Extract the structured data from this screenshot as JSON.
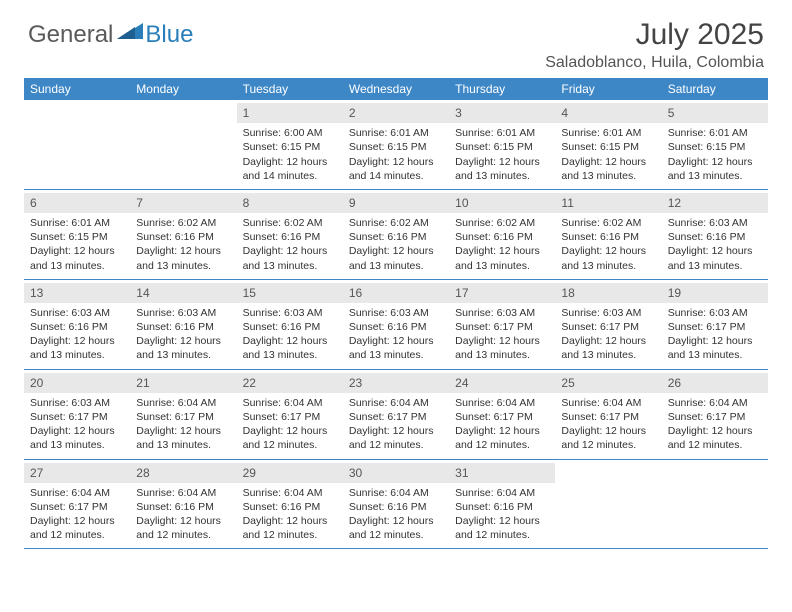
{
  "logo": {
    "part1": "General",
    "part2": "Blue"
  },
  "title": "July 2025",
  "location": "Saladoblanco, Huila, Colombia",
  "colors": {
    "header_bg": "#3d87c7",
    "daynum_bg": "#e8e8e8",
    "logo_blue": "#2a7fba"
  },
  "dayNames": [
    "Sunday",
    "Monday",
    "Tuesday",
    "Wednesday",
    "Thursday",
    "Friday",
    "Saturday"
  ],
  "weeks": [
    [
      null,
      null,
      {
        "n": "1",
        "sr": "Sunrise: 6:00 AM",
        "ss": "Sunset: 6:15 PM",
        "dl": "Daylight: 12 hours and 14 minutes."
      },
      {
        "n": "2",
        "sr": "Sunrise: 6:01 AM",
        "ss": "Sunset: 6:15 PM",
        "dl": "Daylight: 12 hours and 14 minutes."
      },
      {
        "n": "3",
        "sr": "Sunrise: 6:01 AM",
        "ss": "Sunset: 6:15 PM",
        "dl": "Daylight: 12 hours and 13 minutes."
      },
      {
        "n": "4",
        "sr": "Sunrise: 6:01 AM",
        "ss": "Sunset: 6:15 PM",
        "dl": "Daylight: 12 hours and 13 minutes."
      },
      {
        "n": "5",
        "sr": "Sunrise: 6:01 AM",
        "ss": "Sunset: 6:15 PM",
        "dl": "Daylight: 12 hours and 13 minutes."
      }
    ],
    [
      {
        "n": "6",
        "sr": "Sunrise: 6:01 AM",
        "ss": "Sunset: 6:15 PM",
        "dl": "Daylight: 12 hours and 13 minutes."
      },
      {
        "n": "7",
        "sr": "Sunrise: 6:02 AM",
        "ss": "Sunset: 6:16 PM",
        "dl": "Daylight: 12 hours and 13 minutes."
      },
      {
        "n": "8",
        "sr": "Sunrise: 6:02 AM",
        "ss": "Sunset: 6:16 PM",
        "dl": "Daylight: 12 hours and 13 minutes."
      },
      {
        "n": "9",
        "sr": "Sunrise: 6:02 AM",
        "ss": "Sunset: 6:16 PM",
        "dl": "Daylight: 12 hours and 13 minutes."
      },
      {
        "n": "10",
        "sr": "Sunrise: 6:02 AM",
        "ss": "Sunset: 6:16 PM",
        "dl": "Daylight: 12 hours and 13 minutes."
      },
      {
        "n": "11",
        "sr": "Sunrise: 6:02 AM",
        "ss": "Sunset: 6:16 PM",
        "dl": "Daylight: 12 hours and 13 minutes."
      },
      {
        "n": "12",
        "sr": "Sunrise: 6:03 AM",
        "ss": "Sunset: 6:16 PM",
        "dl": "Daylight: 12 hours and 13 minutes."
      }
    ],
    [
      {
        "n": "13",
        "sr": "Sunrise: 6:03 AM",
        "ss": "Sunset: 6:16 PM",
        "dl": "Daylight: 12 hours and 13 minutes."
      },
      {
        "n": "14",
        "sr": "Sunrise: 6:03 AM",
        "ss": "Sunset: 6:16 PM",
        "dl": "Daylight: 12 hours and 13 minutes."
      },
      {
        "n": "15",
        "sr": "Sunrise: 6:03 AM",
        "ss": "Sunset: 6:16 PM",
        "dl": "Daylight: 12 hours and 13 minutes."
      },
      {
        "n": "16",
        "sr": "Sunrise: 6:03 AM",
        "ss": "Sunset: 6:16 PM",
        "dl": "Daylight: 12 hours and 13 minutes."
      },
      {
        "n": "17",
        "sr": "Sunrise: 6:03 AM",
        "ss": "Sunset: 6:17 PM",
        "dl": "Daylight: 12 hours and 13 minutes."
      },
      {
        "n": "18",
        "sr": "Sunrise: 6:03 AM",
        "ss": "Sunset: 6:17 PM",
        "dl": "Daylight: 12 hours and 13 minutes."
      },
      {
        "n": "19",
        "sr": "Sunrise: 6:03 AM",
        "ss": "Sunset: 6:17 PM",
        "dl": "Daylight: 12 hours and 13 minutes."
      }
    ],
    [
      {
        "n": "20",
        "sr": "Sunrise: 6:03 AM",
        "ss": "Sunset: 6:17 PM",
        "dl": "Daylight: 12 hours and 13 minutes."
      },
      {
        "n": "21",
        "sr": "Sunrise: 6:04 AM",
        "ss": "Sunset: 6:17 PM",
        "dl": "Daylight: 12 hours and 13 minutes."
      },
      {
        "n": "22",
        "sr": "Sunrise: 6:04 AM",
        "ss": "Sunset: 6:17 PM",
        "dl": "Daylight: 12 hours and 12 minutes."
      },
      {
        "n": "23",
        "sr": "Sunrise: 6:04 AM",
        "ss": "Sunset: 6:17 PM",
        "dl": "Daylight: 12 hours and 12 minutes."
      },
      {
        "n": "24",
        "sr": "Sunrise: 6:04 AM",
        "ss": "Sunset: 6:17 PM",
        "dl": "Daylight: 12 hours and 12 minutes."
      },
      {
        "n": "25",
        "sr": "Sunrise: 6:04 AM",
        "ss": "Sunset: 6:17 PM",
        "dl": "Daylight: 12 hours and 12 minutes."
      },
      {
        "n": "26",
        "sr": "Sunrise: 6:04 AM",
        "ss": "Sunset: 6:17 PM",
        "dl": "Daylight: 12 hours and 12 minutes."
      }
    ],
    [
      {
        "n": "27",
        "sr": "Sunrise: 6:04 AM",
        "ss": "Sunset: 6:17 PM",
        "dl": "Daylight: 12 hours and 12 minutes."
      },
      {
        "n": "28",
        "sr": "Sunrise: 6:04 AM",
        "ss": "Sunset: 6:16 PM",
        "dl": "Daylight: 12 hours and 12 minutes."
      },
      {
        "n": "29",
        "sr": "Sunrise: 6:04 AM",
        "ss": "Sunset: 6:16 PM",
        "dl": "Daylight: 12 hours and 12 minutes."
      },
      {
        "n": "30",
        "sr": "Sunrise: 6:04 AM",
        "ss": "Sunset: 6:16 PM",
        "dl": "Daylight: 12 hours and 12 minutes."
      },
      {
        "n": "31",
        "sr": "Sunrise: 6:04 AM",
        "ss": "Sunset: 6:16 PM",
        "dl": "Daylight: 12 hours and 12 minutes."
      },
      null,
      null
    ]
  ]
}
